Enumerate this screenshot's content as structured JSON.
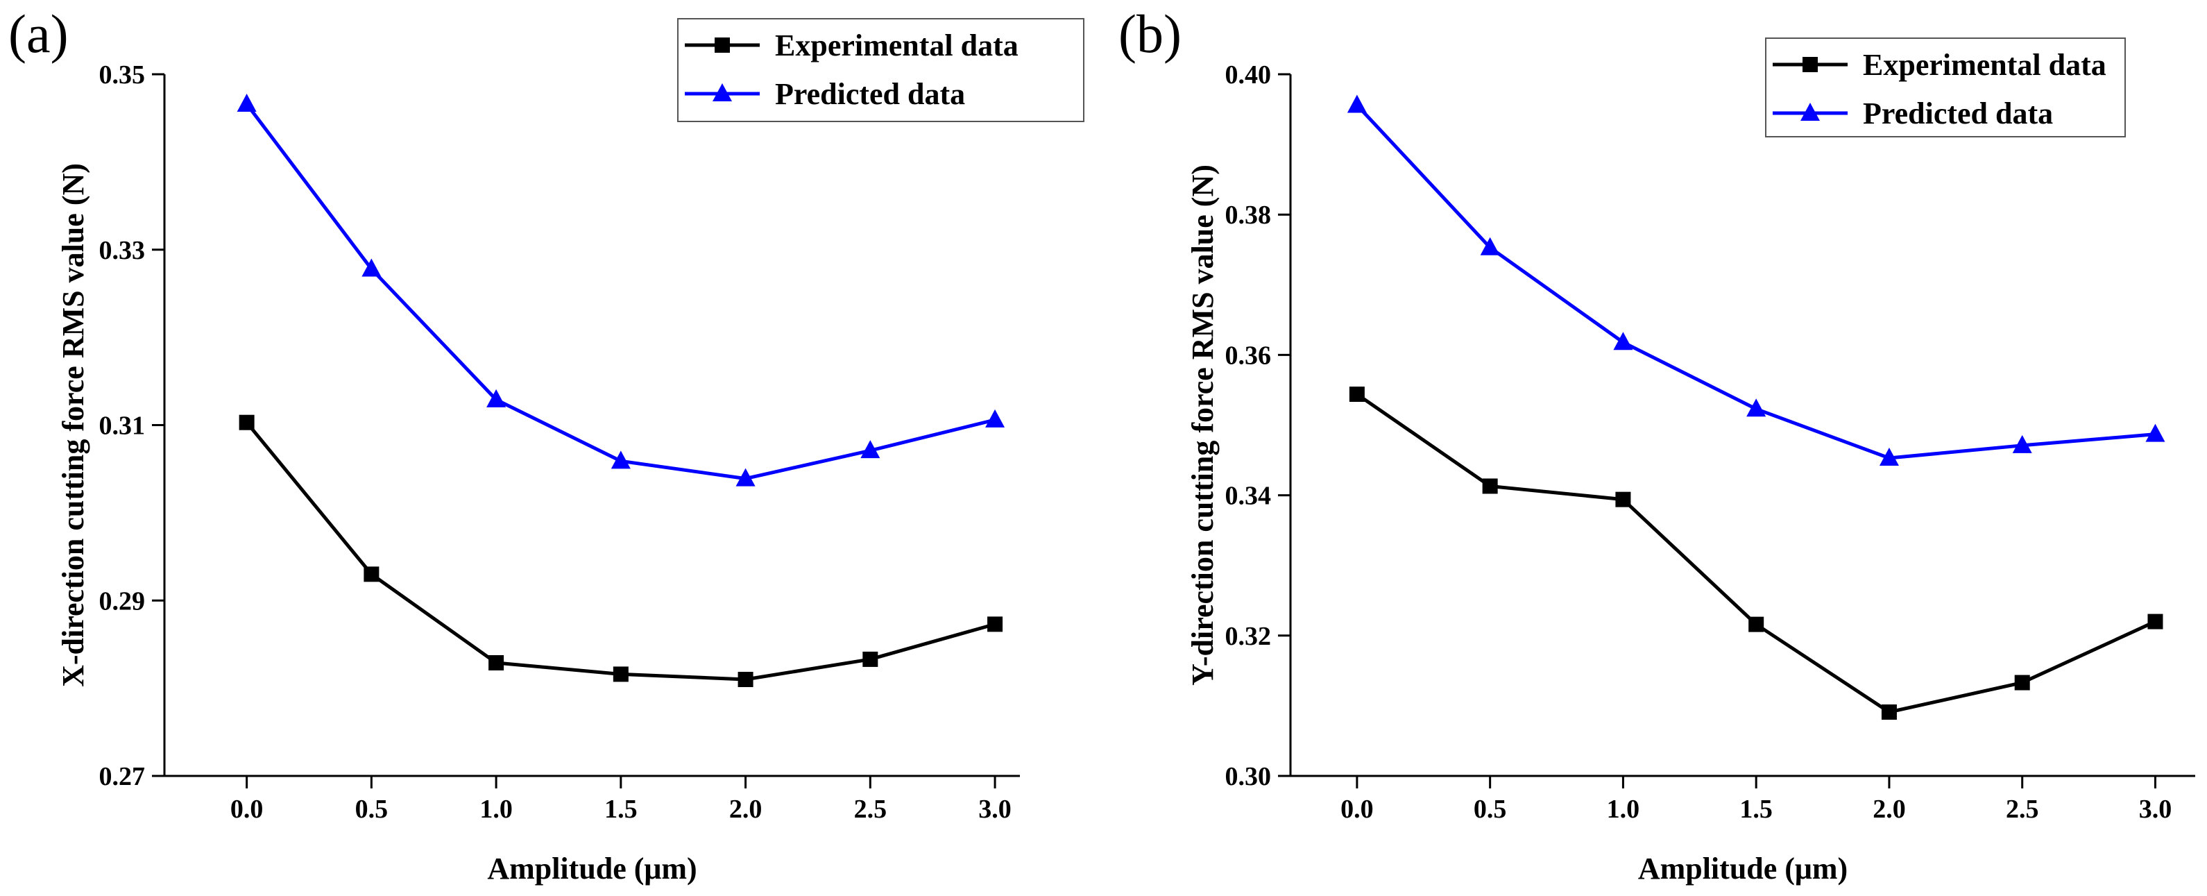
{
  "chart_data": [
    {
      "panel_label": "(a)",
      "type": "line",
      "xlabel": "Amplitude (μm)",
      "ylabel": "X-direction cutting force RMS value (N)",
      "x": [
        0.0,
        0.5,
        1.0,
        1.5,
        2.0,
        2.5,
        3.0
      ],
      "x_tick_labels": [
        "0.0",
        "0.5",
        "1.0",
        "1.5",
        "2.0",
        "2.5",
        "3.0"
      ],
      "xlim": [
        -0.33,
        3.1
      ],
      "ylim": [
        0.27,
        0.35
      ],
      "y_ticks": [
        0.27,
        0.29,
        0.31,
        0.33,
        0.35
      ],
      "y_tick_labels": [
        "0.27",
        "0.29",
        "0.31",
        "0.33",
        "0.35"
      ],
      "legend_position": "top-right",
      "series": [
        {
          "name": "Experimental data",
          "marker": "square",
          "color": "#000000",
          "values": [
            0.3103,
            0.293,
            0.2829,
            0.2816,
            0.281,
            0.2833,
            0.2873
          ]
        },
        {
          "name": "Predicted data",
          "marker": "triangle",
          "color": "#0000ff",
          "values": [
            0.3466,
            0.3278,
            0.3129,
            0.3059,
            0.3039,
            0.3071,
            0.3106
          ]
        }
      ]
    },
    {
      "panel_label": "(b)",
      "type": "line",
      "xlabel": "Amplitude (μm)",
      "ylabel": "Y-direction cutting force RMS value (N)",
      "x": [
        0.0,
        0.5,
        1.0,
        1.5,
        2.0,
        2.5,
        3.0
      ],
      "x_tick_labels": [
        "0.0",
        "0.5",
        "1.0",
        "1.5",
        "2.0",
        "2.5",
        "3.0"
      ],
      "xlim": [
        -0.25,
        3.15
      ],
      "ylim": [
        0.3,
        0.4
      ],
      "y_ticks": [
        0.3,
        0.32,
        0.34,
        0.36,
        0.38,
        0.4
      ],
      "y_tick_labels": [
        "0.30",
        "0.32",
        "0.34",
        "0.36",
        "0.38",
        "0.40"
      ],
      "legend_position": "top-right",
      "series": [
        {
          "name": "Experimental data",
          "marker": "square",
          "color": "#000000",
          "values": [
            0.3544,
            0.3413,
            0.3394,
            0.3216,
            0.3091,
            0.3133,
            0.322
          ]
        },
        {
          "name": "Predicted data",
          "marker": "triangle",
          "color": "#0000ff",
          "values": [
            0.3956,
            0.3753,
            0.3618,
            0.3523,
            0.3453,
            0.3471,
            0.3487
          ]
        }
      ]
    }
  ]
}
